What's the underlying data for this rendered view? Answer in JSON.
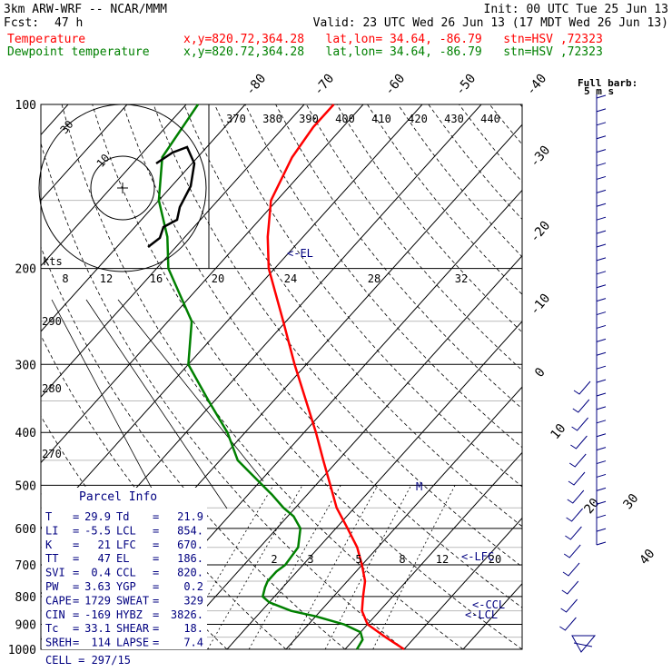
{
  "header": {
    "model": "3km ARW-WRF -- NCAR/MMM",
    "init": "Init: 00 UTC Tue 25 Jun 13",
    "fcst_label": "Fcst:",
    "fcst_value": "47 h",
    "valid": "Valid: 23 UTC Wed 26 Jun 13 (17 MDT Wed 26 Jun 13)",
    "temp_label": "Temperature",
    "dew_label": "Dewpoint temperature",
    "location": "x,y=820.72,364.28   lat,lon= 34.64, -86.79   stn=HSV ,72323"
  },
  "barb_legend": {
    "title": "Full barb:",
    "value": "5 m s"
  },
  "colors": {
    "temperature": "#ff0000",
    "dewpoint": "#008000",
    "barbs": "#000080",
    "grid": "#000000"
  },
  "chart_data": {
    "type": "line",
    "title": "",
    "y_axis": {
      "scale": "log-pressure",
      "unit": "hPa",
      "range": [
        1000,
        100
      ],
      "ticks": [
        100,
        200,
        300,
        400,
        500,
        600,
        700,
        800,
        900,
        1000
      ]
    },
    "isotherm_labels": [
      -80,
      -70,
      -60,
      -50,
      -40,
      -30,
      -20,
      -10,
      0,
      10,
      20,
      30,
      40
    ],
    "theta_labels": [
      370,
      380,
      390,
      400,
      410,
      420,
      430,
      440
    ],
    "theta_left_labels": [
      290,
      280,
      270
    ],
    "mixing_ratio_labels": [
      2,
      3,
      5,
      8,
      12,
      20
    ],
    "series": [
      {
        "name": "Temperature",
        "points": [
          [
            1000,
            30
          ],
          [
            950,
            25
          ],
          [
            900,
            20
          ],
          [
            850,
            17
          ],
          [
            800,
            15
          ],
          [
            750,
            13
          ],
          [
            700,
            10
          ],
          [
            650,
            6.5
          ],
          [
            600,
            2
          ],
          [
            550,
            -3
          ],
          [
            500,
            -7.5
          ],
          [
            450,
            -12.5
          ],
          [
            400,
            -18
          ],
          [
            350,
            -24.5
          ],
          [
            300,
            -32
          ],
          [
            250,
            -40.5
          ],
          [
            200,
            -51
          ],
          [
            175,
            -56
          ],
          [
            150,
            -61
          ],
          [
            125,
            -64
          ],
          [
            110,
            -65
          ],
          [
            100,
            -65
          ]
        ]
      },
      {
        "name": "Dewpoint temperature",
        "points": [
          [
            1000,
            22
          ],
          [
            960,
            21.5
          ],
          [
            930,
            20
          ],
          [
            900,
            16
          ],
          [
            870,
            10
          ],
          [
            850,
            5
          ],
          [
            820,
            0
          ],
          [
            800,
            -2
          ],
          [
            770,
            -3
          ],
          [
            750,
            -3.5
          ],
          [
            720,
            -3.5
          ],
          [
            700,
            -3
          ],
          [
            650,
            -3.5
          ],
          [
            600,
            -6
          ],
          [
            570,
            -9
          ],
          [
            550,
            -12
          ],
          [
            520,
            -16
          ],
          [
            500,
            -19
          ],
          [
            450,
            -27
          ],
          [
            400,
            -33
          ],
          [
            350,
            -41
          ],
          [
            300,
            -50
          ],
          [
            250,
            -56
          ],
          [
            200,
            -68
          ],
          [
            175,
            -73
          ],
          [
            150,
            -80
          ],
          [
            125,
            -86
          ],
          [
            100,
            -88
          ]
        ]
      }
    ],
    "annotations": [
      {
        "label": "<-EL",
        "pressure": 186
      },
      {
        "label": "<-LFC",
        "pressure": 670
      },
      {
        "label": "<-CCL",
        "pressure": 820
      },
      {
        "label": "<-LCL",
        "pressure": 854
      },
      {
        "label": "M",
        "pressure": 500
      }
    ],
    "hodograph": {
      "unit_label": "kts",
      "rings": [
        10,
        30
      ],
      "speed_ticks": [
        8,
        12,
        16,
        20,
        24,
        28,
        32
      ]
    },
    "wind_profile_barbs": 34
  },
  "parcel_info": {
    "title": "Parcel Info",
    "rows": [
      {
        "l1": "T",
        "v1": "29.9",
        "l2": "Td",
        "v2": "21.9"
      },
      {
        "l1": "LI",
        "v1": "-5.5",
        "l2": "LCL",
        "v2": "854."
      },
      {
        "l1": "K",
        "v1": "21",
        "l2": "LFC",
        "v2": "670."
      },
      {
        "l1": "TT",
        "v1": "47",
        "l2": "EL",
        "v2": "186."
      },
      {
        "l1": "SVI",
        "v1": "0.4",
        "l2": "CCL",
        "v2": "820."
      },
      {
        "l1": "PW",
        "v1": "3.63",
        "l2": "YGP",
        "v2": "0.2"
      },
      {
        "l1": "CAPE",
        "v1": "1729",
        "l2": "SWEAT",
        "v2": "329"
      },
      {
        "l1": "CIN",
        "v1": "-169",
        "l2": "HYBZ",
        "v2": "3826."
      },
      {
        "l1": "Tc",
        "v1": "33.1",
        "l2": "SHEAR",
        "v2": "18."
      },
      {
        "l1": "SREH",
        "v1": "114",
        "l2": "LAPSE",
        "v2": "7.4"
      }
    ],
    "cell": "CELL = 297/15"
  }
}
